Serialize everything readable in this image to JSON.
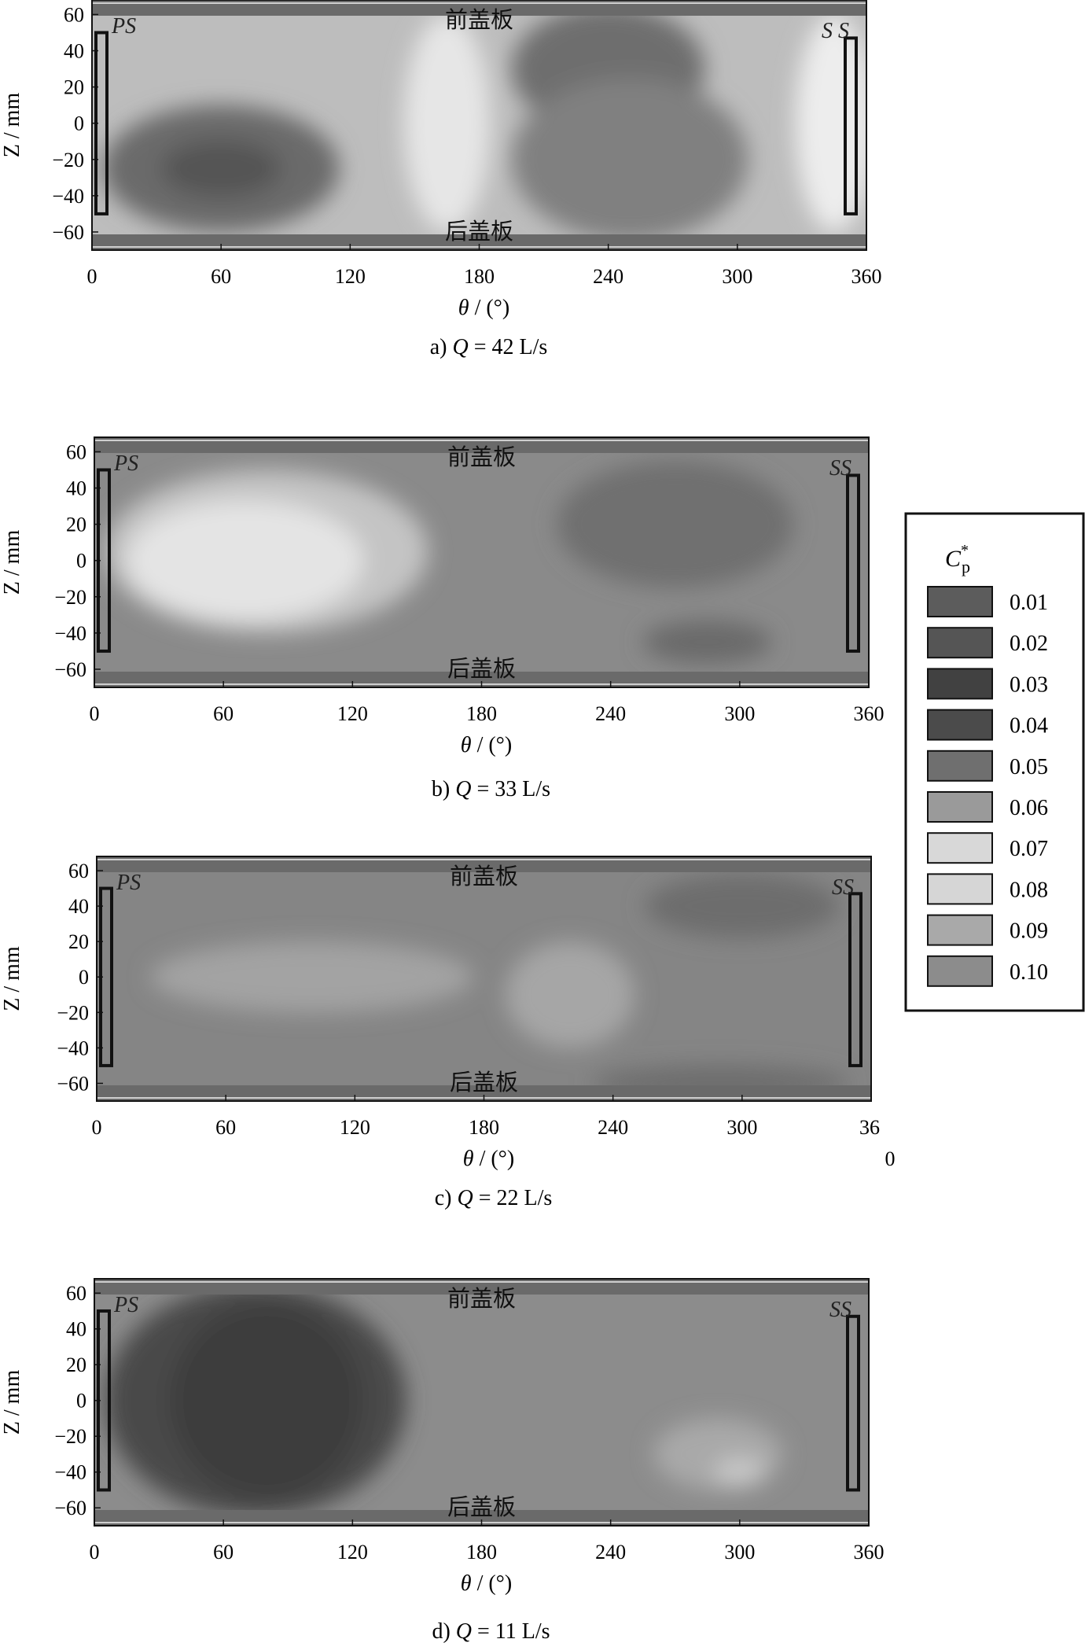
{
  "legend": {
    "title_main": "C",
    "title_sup": "*",
    "title_sub": "p",
    "items": [
      {
        "label": "0.01",
        "color": "#5c5c5c"
      },
      {
        "label": "0.02",
        "color": "#555555"
      },
      {
        "label": "0.03",
        "color": "#414141"
      },
      {
        "label": "0.04",
        "color": "#4b4b4b"
      },
      {
        "label": "0.05",
        "color": "#6f6f6f"
      },
      {
        "label": "0.06",
        "color": "#9a9a9a"
      },
      {
        "label": "0.07",
        "color": "#d8d8d8"
      },
      {
        "label": "0.08",
        "color": "#d6d6d6"
      },
      {
        "label": "0.09",
        "color": "#a9a9a9"
      },
      {
        "label": "0.10",
        "color": "#8c8c8c"
      }
    ]
  },
  "chart_data": [
    {
      "type": "heatmap",
      "caption": {
        "prefix": "a) ",
        "var": "Q",
        "rest": " = 42 L/s"
      },
      "xlabel": {
        "sym": "θ",
        "rest": " / (°)"
      },
      "ylabel": "Z / mm",
      "xlim": [
        0,
        360
      ],
      "ylim": [
        -70,
        68
      ],
      "xticks": [
        "0",
        "60",
        "120",
        "180",
        "240",
        "300",
        "360"
      ],
      "yticks": [
        "60",
        "40",
        "20",
        "0",
        "-20",
        "-40",
        "-60"
      ],
      "annotations": {
        "front_plate": "前盖板",
        "rear_plate": "后盖板",
        "ps": "PS",
        "ss": "S S"
      },
      "background": "#bdbdbd",
      "regions": [
        {
          "x": 60,
          "z": -25,
          "rx": 55,
          "rz": 35,
          "color": "#6a6a6a"
        },
        {
          "x": 60,
          "z": -25,
          "rx": 28,
          "rz": 16,
          "color": "#555555"
        },
        {
          "x": 165,
          "z": 0,
          "rx": 20,
          "rz": 60,
          "color": "#e6e6e6"
        },
        {
          "x": 240,
          "z": 30,
          "rx": 45,
          "rz": 35,
          "color": "#6e6e6e"
        },
        {
          "x": 250,
          "z": -20,
          "rx": 55,
          "rz": 45,
          "color": "#808080"
        },
        {
          "x": 345,
          "z": 0,
          "rx": 18,
          "rz": 60,
          "color": "#ededed"
        }
      ]
    },
    {
      "type": "heatmap",
      "caption": {
        "prefix": "b) ",
        "var": "Q",
        "rest": " = 33 L/s"
      },
      "xlabel": {
        "sym": "θ",
        "rest": " / (°)"
      },
      "ylabel": "Z / mm",
      "xlim": [
        0,
        360
      ],
      "ylim": [
        -70,
        68
      ],
      "xticks": [
        "0",
        "60",
        "120",
        "180",
        "240",
        "300",
        "360"
      ],
      "yticks": [
        "60",
        "40",
        "20",
        "0",
        "-20",
        "-40",
        "-60"
      ],
      "annotations": {
        "front_plate": "前盖板",
        "rear_plate": "后盖板",
        "ps": "PS",
        "ss": "SS"
      },
      "background": "#8a8a8a",
      "regions": [
        {
          "x": 80,
          "z": 5,
          "rx": 75,
          "rz": 45,
          "color": "#c4c4c4"
        },
        {
          "x": 70,
          "z": 0,
          "rx": 55,
          "rz": 33,
          "color": "#e4e4e4"
        },
        {
          "x": 270,
          "z": 20,
          "rx": 55,
          "rz": 35,
          "color": "#6f6f6f"
        },
        {
          "x": 285,
          "z": -45,
          "rx": 30,
          "rz": 12,
          "color": "#6a6a6a"
        }
      ]
    },
    {
      "type": "heatmap",
      "caption": {
        "prefix": "c) ",
        "var": "Q",
        "rest": " = 22 L/s"
      },
      "xlabel": {
        "sym": "θ",
        "rest": " / (°)"
      },
      "ylabel": "Z / mm",
      "xlim": [
        0,
        360
      ],
      "ylim": [
        -70,
        68
      ],
      "xticks": [
        "0",
        "60",
        "120",
        "180",
        "240",
        "300",
        "36",
        "0"
      ],
      "yticks": [
        "60",
        "40",
        "20",
        "0",
        "-20",
        "-40",
        "-60"
      ],
      "annotations": {
        "front_plate": "前盖板",
        "rear_plate": "后盖板",
        "ps": "PS",
        "ss": "SS"
      },
      "background": "#858585",
      "regions": [
        {
          "x": 100,
          "z": 0,
          "rx": 75,
          "rz": 20,
          "color": "#a3a3a3"
        },
        {
          "x": 220,
          "z": -10,
          "rx": 30,
          "rz": 30,
          "color": "#a6a6a6"
        },
        {
          "x": 300,
          "z": 40,
          "rx": 45,
          "rz": 18,
          "color": "#6d6d6d"
        },
        {
          "x": 290,
          "z": -60,
          "rx": 60,
          "rz": 10,
          "color": "#6d6d6d"
        }
      ]
    },
    {
      "type": "heatmap",
      "caption": {
        "prefix": "d) ",
        "var": "Q",
        "rest": " = 11 L/s"
      },
      "xlabel": {
        "sym": "θ",
        "rest": " / (°)"
      },
      "ylabel": "Z / mm",
      "xlim": [
        0,
        360
      ],
      "ylim": [
        -70,
        68
      ],
      "xticks": [
        "0",
        "60",
        "120",
        "180",
        "240",
        "300",
        "360"
      ],
      "yticks": [
        "60",
        "40",
        "20",
        "0",
        "-20",
        "-40",
        "-60"
      ],
      "annotations": {
        "front_plate": "前盖板",
        "rear_plate": "后盖板",
        "ps": "PS",
        "ss": "SS"
      },
      "background": "#8c8c8c",
      "regions": [
        {
          "x": 75,
          "z": 0,
          "rx": 70,
          "rz": 65,
          "color": "#4a4a4a"
        },
        {
          "x": 80,
          "z": 0,
          "rx": 45,
          "rz": 55,
          "color": "#3e3e3e"
        },
        {
          "x": 290,
          "z": -30,
          "rx": 30,
          "rz": 20,
          "color": "#a9a9a9"
        },
        {
          "x": 300,
          "z": -40,
          "rx": 12,
          "rz": 8,
          "color": "#c7c7c7"
        }
      ]
    }
  ]
}
